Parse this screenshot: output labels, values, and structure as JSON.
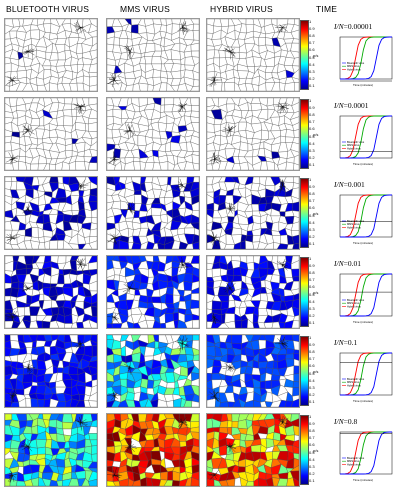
{
  "headers": {
    "bluetooth": "BLUETOOTH VIRUS",
    "mms": "MMS VIRUS",
    "hybrid": "HYBRID VIRUS",
    "time": "TIME"
  },
  "colorbar_ticks": [
    "1",
    "0.9",
    "0.8",
    "0.7",
    "0.6",
    "0.5",
    "0.4",
    "0.3",
    "0.2",
    "0.1"
  ],
  "colorbar_label": "p/s",
  "time_plot": {
    "xlabel": "Time (minutes)",
    "legend": [
      "Bluetooth virus",
      "MMS virus",
      "Hybrid virus"
    ],
    "series_colors": {
      "bluetooth": "#0000ff",
      "mms": "#00aa00",
      "hybrid": "#ff0000"
    }
  },
  "rows": [
    {
      "ratio_label": "I/N",
      "ratio_value": "=0.00001",
      "level": 1e-05
    },
    {
      "ratio_label": "I/N",
      "ratio_value": "=0.0001",
      "level": 0.0001
    },
    {
      "ratio_label": "I/N",
      "ratio_value": "=0.001",
      "level": 0.001
    },
    {
      "ratio_label": "I/N",
      "ratio_value": "=0.01",
      "level": 0.01
    },
    {
      "ratio_label": "I/N",
      "ratio_value": "=0.1",
      "level": 0.1
    },
    {
      "ratio_label": "I/N",
      "ratio_value": "=0.8",
      "level": 0.8
    }
  ]
}
